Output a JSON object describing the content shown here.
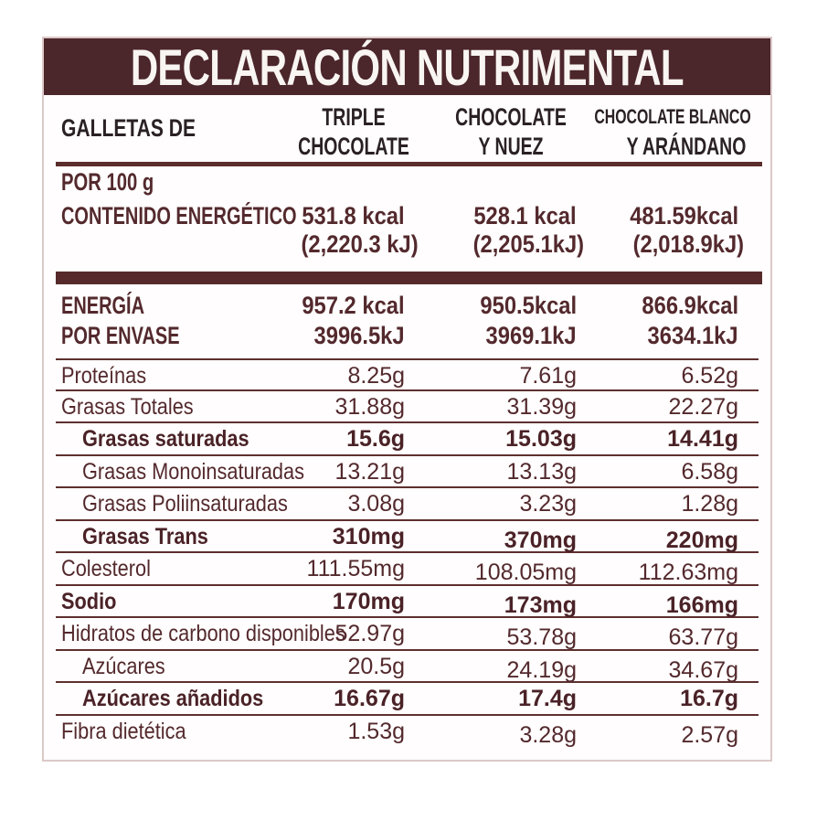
{
  "title": "DECLARACIÓN NUTRIMENTAL",
  "header": {
    "product_label": "GALLETAS DE",
    "columns": [
      {
        "lines": [
          "TRIPLE",
          "CHOCOLATE"
        ]
      },
      {
        "lines": [
          "CHOCOLATE",
          "Y NUEZ"
        ]
      },
      {
        "lines": [
          "CHOCOLATE BLANCO",
          "Y ARÁNDANO"
        ]
      }
    ]
  },
  "per_100g": {
    "section_label": "POR 100 g",
    "row_label": "CONTENIDO ENERGÉTICO",
    "kcal": [
      "531.8 kcal",
      "528.1 kcal",
      "481.59kcal"
    ],
    "kj": [
      "(2,220.3 kJ)",
      "(2,205.1kJ)",
      "(2,018.9kJ)"
    ]
  },
  "per_package": {
    "labels": [
      "ENERGÍA",
      "POR ENVASE"
    ],
    "kcal": [
      "957.2 kcal",
      "950.5kcal",
      "866.9kcal"
    ],
    "kj": [
      "3996.5kJ",
      "3969.1kJ",
      "3634.1kJ"
    ]
  },
  "nutrients": [
    {
      "label": "Proteínas",
      "values": [
        "8.25g",
        "7.61g",
        "6.52g"
      ],
      "bold": false,
      "indent": 0,
      "offset": false
    },
    {
      "label": "Grasas Totales",
      "values": [
        "31.88g",
        "31.39g",
        "22.27g"
      ],
      "bold": false,
      "indent": 0,
      "offset": false
    },
    {
      "label": "Grasas saturadas",
      "values": [
        "15.6g",
        "15.03g",
        "14.41g"
      ],
      "bold": true,
      "indent": 1,
      "offset": false
    },
    {
      "label": "Grasas Monoinsaturadas",
      "values": [
        "13.21g",
        "13.13g",
        "6.58g"
      ],
      "bold": false,
      "indent": 1,
      "offset": false
    },
    {
      "label": "Grasas Poliinsaturadas",
      "values": [
        "3.08g",
        "3.23g",
        "1.28g"
      ],
      "bold": false,
      "indent": 1,
      "offset": false
    },
    {
      "label": "Grasas Trans",
      "values": [
        "310mg",
        "370mg",
        "220mg"
      ],
      "bold": true,
      "indent": 1,
      "offset": true
    },
    {
      "label": "Colesterol",
      "values": [
        "111.55mg",
        "108.05mg",
        "112.63mg"
      ],
      "bold": false,
      "indent": 0,
      "offset": true
    },
    {
      "label": "Sodio",
      "values": [
        "170mg",
        "173mg",
        "166mg"
      ],
      "bold": true,
      "indent": 0,
      "offset": true
    },
    {
      "label": "Hidratos de carbono disponibles",
      "values": [
        "52.97g",
        "53.78g",
        "63.77g"
      ],
      "bold": false,
      "indent": 0,
      "offset": true
    },
    {
      "label": "Azúcares",
      "values": [
        "20.5g",
        "24.19g",
        "34.67g"
      ],
      "bold": false,
      "indent": 1,
      "offset": true
    },
    {
      "label": "Azúcares añadidos",
      "values": [
        "16.67g",
        "17.4g",
        "16.7g"
      ],
      "bold": true,
      "indent": 1,
      "offset": false
    },
    {
      "label": "Fibra dietética",
      "values": [
        "1.53g",
        "3.28g",
        "2.57g"
      ],
      "bold": false,
      "indent": 0,
      "offset": true
    }
  ]
}
